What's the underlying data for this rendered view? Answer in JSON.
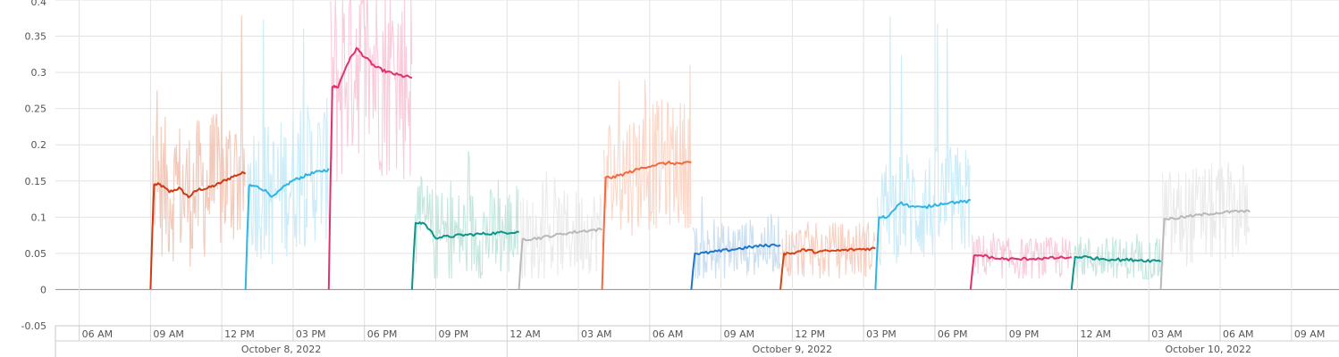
{
  "chart_data": {
    "type": "line",
    "title": "",
    "xlabel": "",
    "ylabel": "",
    "ylim": [
      -0.05,
      0.4
    ],
    "yticks": [
      -0.05,
      0,
      0.05,
      0.1,
      0.15,
      0.2,
      0.25,
      0.3,
      0.35,
      0.4
    ],
    "ytick_labels": [
      "-0.05",
      "0",
      "0.05",
      "0.1",
      "0.15",
      "0.2",
      "0.25",
      "0.3",
      "0.35",
      "0.4"
    ],
    "xlim": [
      "2022-10-08 05:00",
      "2022-10-10 11:00"
    ],
    "grid": true,
    "legend": "none",
    "xticks": [
      {
        "t": "2022-10-08 06:00",
        "label": "06 AM"
      },
      {
        "t": "2022-10-08 09:00",
        "label": "09 AM"
      },
      {
        "t": "2022-10-08 12:00",
        "label": "12 PM"
      },
      {
        "t": "2022-10-08 15:00",
        "label": "03 PM"
      },
      {
        "t": "2022-10-08 18:00",
        "label": "06 PM"
      },
      {
        "t": "2022-10-08 21:00",
        "label": "09 PM"
      },
      {
        "t": "2022-10-09 00:00",
        "label": "12 AM"
      },
      {
        "t": "2022-10-09 03:00",
        "label": "03 AM"
      },
      {
        "t": "2022-10-09 06:00",
        "label": "06 AM"
      },
      {
        "t": "2022-10-09 09:00",
        "label": "09 AM"
      },
      {
        "t": "2022-10-09 12:00",
        "label": "12 PM"
      },
      {
        "t": "2022-10-09 15:00",
        "label": "03 PM"
      },
      {
        "t": "2022-10-09 18:00",
        "label": "06 PM"
      },
      {
        "t": "2022-10-09 21:00",
        "label": "09 PM"
      },
      {
        "t": "2022-10-10 00:00",
        "label": "12 AM"
      },
      {
        "t": "2022-10-10 03:00",
        "label": "03 AM"
      },
      {
        "t": "2022-10-10 06:00",
        "label": "06 AM"
      },
      {
        "t": "2022-10-10 09:00",
        "label": "09 AM"
      }
    ],
    "date_groups": [
      {
        "label": "October 8, 2022",
        "start": "2022-10-08 05:00",
        "end": "2022-10-09 00:00"
      },
      {
        "label": "October 9, 2022",
        "start": "2022-10-09 00:00",
        "end": "2022-10-10 00:00"
      },
      {
        "label": "October 10, 2022",
        "start": "2022-10-10 00:00",
        "end": "2022-10-10 11:00"
      }
    ],
    "series": [
      {
        "start": "2022-10-08 09:00",
        "end": "2022-10-08 13:00",
        "color": "#cc3b16",
        "band_color": "#f0c4b5",
        "noise_amp": 0.1,
        "spike_max": 0.38,
        "values": [
          0.0,
          0.145,
          0.135,
          0.14,
          0.128,
          0.138,
          0.14,
          0.145,
          0.152,
          0.158,
          0.162
        ]
      },
      {
        "start": "2022-10-08 13:00",
        "end": "2022-10-08 16:30",
        "color": "#2eb5e5",
        "band_color": "#c7eaf7",
        "noise_amp": 0.1,
        "spike_max": 0.4,
        "values": [
          0.0,
          0.143,
          0.138,
          0.128,
          0.14,
          0.15,
          0.155,
          0.16,
          0.163,
          0.166
        ]
      },
      {
        "start": "2022-10-08 16:30",
        "end": "2022-10-08 20:00",
        "color": "#e0336e",
        "band_color": "#f7c6d8",
        "noise_amp": 0.15,
        "spike_max": 0.4,
        "values": [
          0.0,
          0.28,
          0.312,
          0.333,
          0.32,
          0.308,
          0.302,
          0.298,
          0.295,
          0.293
        ]
      },
      {
        "start": "2022-10-08 20:00",
        "end": "2022-10-09 00:30",
        "color": "#0e9488",
        "band_color": "#bfe3dc",
        "noise_amp": 0.065,
        "spike_max": 0.2,
        "values": [
          0.0,
          0.092,
          0.072,
          0.073,
          0.075,
          0.076,
          0.077,
          0.078,
          0.079,
          0.08
        ]
      },
      {
        "start": "2022-10-09 00:30",
        "end": "2022-10-09 04:00",
        "color": "#b9b9b9",
        "band_color": "#e9e9e9",
        "noise_amp": 0.06,
        "spike_max": 0.17,
        "values": [
          0.0,
          0.07,
          0.072,
          0.075,
          0.078,
          0.08,
          0.082,
          0.083
        ]
      },
      {
        "start": "2022-10-09 04:00",
        "end": "2022-10-09 07:45",
        "color": "#f2693f",
        "band_color": "#fad3c3",
        "noise_amp": 0.09,
        "spike_max": 0.33,
        "values": [
          0.0,
          0.155,
          0.16,
          0.165,
          0.17,
          0.173,
          0.175,
          0.174,
          0.175
        ]
      },
      {
        "start": "2022-10-09 07:45",
        "end": "2022-10-09 11:30",
        "color": "#1f77c9",
        "band_color": "#c5dcf0",
        "noise_amp": 0.04,
        "spike_max": 0.13,
        "values": [
          0.0,
          0.05,
          0.052,
          0.054,
          0.056,
          0.058,
          0.06,
          0.061,
          0.062
        ]
      },
      {
        "start": "2022-10-09 11:30",
        "end": "2022-10-09 15:30",
        "color": "#d84315",
        "band_color": "#f5cbbd",
        "noise_amp": 0.04,
        "spike_max": 0.11,
        "values": [
          0.0,
          0.05,
          0.055,
          0.052,
          0.053,
          0.054,
          0.055,
          0.056,
          0.057
        ]
      },
      {
        "start": "2022-10-09 15:30",
        "end": "2022-10-09 19:30",
        "color": "#2eb5e5",
        "band_color": "#c7eaf7",
        "noise_amp": 0.08,
        "spike_max": 0.4,
        "values": [
          0.0,
          0.1,
          0.12,
          0.115,
          0.113,
          0.117,
          0.12,
          0.121,
          0.122
        ]
      },
      {
        "start": "2022-10-09 19:30",
        "end": "2022-10-09 23:45",
        "color": "#e0336e",
        "band_color": "#f7c6d8",
        "noise_amp": 0.03,
        "spike_max": 0.08,
        "values": [
          0.0,
          0.047,
          0.043,
          0.042,
          0.042,
          0.043,
          0.043,
          0.044,
          0.044
        ]
      },
      {
        "start": "2022-10-09 23:45",
        "end": "2022-10-10 03:30",
        "color": "#0e9488",
        "band_color": "#bfe3dc",
        "noise_amp": 0.03,
        "spike_max": 0.08,
        "values": [
          0.0,
          0.045,
          0.043,
          0.042,
          0.041,
          0.041,
          0.04,
          0.04
        ]
      },
      {
        "start": "2022-10-10 03:30",
        "end": "2022-10-10 07:15",
        "color": "#b9b9b9",
        "band_color": "#e9e9e9",
        "noise_amp": 0.07,
        "spike_max": 0.19,
        "values": [
          0.0,
          0.098,
          0.1,
          0.102,
          0.104,
          0.106,
          0.107,
          0.108,
          0.108
        ]
      }
    ]
  }
}
